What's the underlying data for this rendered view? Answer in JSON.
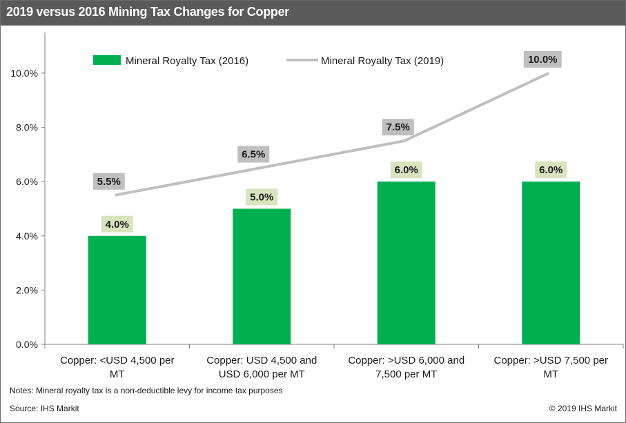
{
  "title": "2019 versus 2016 Mining Tax Changes for Copper",
  "notes": "Notes: Mineral royalty tax is a non-deductible levy for income tax purposes",
  "source": "Source: IHS Markit",
  "copyright": "© 2019 IHS Markit",
  "chart_data": {
    "type": "bar",
    "categories": [
      [
        "Copper: <USD 4,500 per",
        "MT"
      ],
      [
        "Copper: USD 4,500 and",
        "USD 6,000 per MT"
      ],
      [
        "Copper: >USD 6,000 and",
        "7,500 per MT"
      ],
      [
        "Copper: >USD 7,500 per",
        "MT"
      ]
    ],
    "series": [
      {
        "name": "Mineral Royalty Tax (2016)",
        "kind": "bar",
        "color": "#00b050",
        "label_bg": "#d7e4bd",
        "values": [
          4.0,
          5.0,
          6.0,
          6.0
        ],
        "labels": [
          "4.0%",
          "5.0%",
          "6.0%",
          "6.0%"
        ]
      },
      {
        "name": "Mineral Royalty Tax (2019)",
        "kind": "line",
        "color": "#bfbfbf",
        "label_bg": "#bfbfbf",
        "values": [
          5.5,
          6.5,
          7.5,
          10.0
        ],
        "labels": [
          "5.5%",
          "6.5%",
          "7.5%",
          "10.0%"
        ]
      }
    ],
    "ylim": [
      0,
      11.5
    ],
    "yticks": [
      0,
      2,
      4,
      6,
      8,
      10
    ],
    "ytick_labels": [
      "0.0%",
      "2.0%",
      "4.0%",
      "6.0%",
      "8.0%",
      "10.0%"
    ],
    "legend_position": "top",
    "grid": false
  }
}
